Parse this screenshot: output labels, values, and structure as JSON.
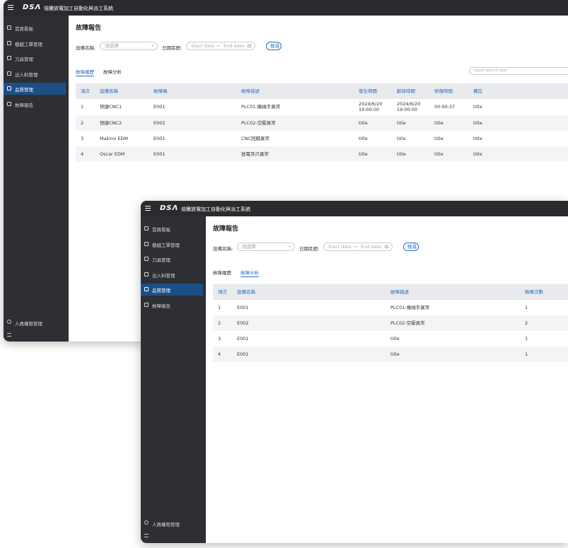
{
  "app": {
    "logo": "DSΛ",
    "title": "倍騰放電加工自動化與派工系統"
  },
  "sidebar": {
    "items": [
      "首頁看板",
      "模組工單管理",
      "刀具管理",
      "出入料管理",
      "品質管理",
      "故障報告"
    ],
    "active_item": 4,
    "bottom": "人員權限管理"
  },
  "windows": [
    {
      "page_title": "故障報告",
      "filter": {
        "device_label": "設備名稱:",
        "device_placeholder": "請選擇",
        "date_label": "日期區間:",
        "start_placeholder": "Start date",
        "arrow": "→",
        "end_placeholder": "End date",
        "search_button": "搜尋"
      },
      "tabs": [
        "故障履歷",
        "故障分析"
      ],
      "active_tab": 0,
      "search_placeholder": "input search text",
      "table": {
        "columns": [
          "項次",
          "設備名稱",
          "故障碼",
          "故障描述",
          "發生時間",
          "解除時間",
          "修復時間",
          "備註"
        ],
        "rows": [
          [
            "1",
            "快捷CNC1",
            "E001",
            "PLC01-機械手異常",
            "2024/6/20 19:00:00",
            "2024/6/20 19:00:00",
            "00:00:37",
            "title"
          ],
          [
            "2",
            "快捷CNC2",
            "E002",
            "PLC02-空壓異常",
            "title",
            "title",
            "title",
            "title"
          ],
          [
            "3",
            "Makino EDM",
            "E001",
            "CNC回饋異常",
            "title",
            "title",
            "title",
            "title"
          ],
          [
            "4",
            "Oscar EDM",
            "E001",
            "放電夾爪異常",
            "title",
            "title",
            "title",
            "title"
          ]
        ]
      }
    },
    {
      "page_title": "故障報告",
      "filter": {
        "device_label": "設備名稱:",
        "device_placeholder": "請選擇",
        "date_label": "日期區間:",
        "start_placeholder": "Start date",
        "arrow": "→",
        "end_placeholder": "End date",
        "search_button": "搜尋"
      },
      "tabs": [
        "故障履歷",
        "故障分析"
      ],
      "active_tab": 1,
      "table": {
        "columns": [
          "項次",
          "設備名稱",
          "故障描述",
          "故障次數"
        ],
        "rows": [
          [
            "1",
            "E001",
            "PLC01-機械手異常",
            "1"
          ],
          [
            "2",
            "E002",
            "PLC02-空壓異常",
            "2"
          ],
          [
            "3",
            "E001",
            "title",
            "1"
          ],
          [
            "4",
            "E001",
            "title",
            "1"
          ]
        ]
      }
    }
  ]
}
